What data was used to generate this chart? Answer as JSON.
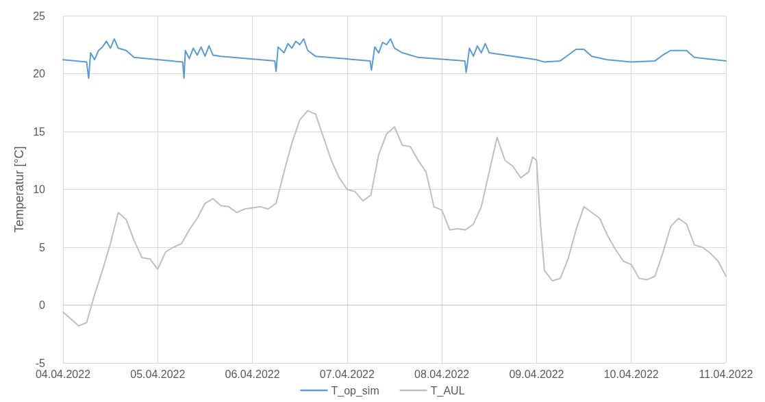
{
  "chart_data": {
    "type": "line",
    "ylabel": "Temperatur [°C]",
    "xlim": [
      "2022-04-04",
      "2022-04-11"
    ],
    "ylim": [
      -5,
      25
    ],
    "yticks": [
      -5,
      0,
      5,
      10,
      15,
      20,
      25
    ],
    "xticks": [
      {
        "value": "2022-04-04",
        "label": "04.04.2022"
      },
      {
        "value": "2022-04-05",
        "label": "05.04.2022"
      },
      {
        "value": "2022-04-06",
        "label": "06.04.2022"
      },
      {
        "value": "2022-04-07",
        "label": "07.04.2022"
      },
      {
        "value": "2022-04-08",
        "label": "08.04.2022"
      },
      {
        "value": "2022-04-09",
        "label": "09.04.2022"
      },
      {
        "value": "2022-04-10",
        "label": "10.04.2022"
      },
      {
        "value": "2022-04-11",
        "label": "11.04.2022"
      }
    ],
    "grid": true,
    "legend": "bottom",
    "marker": "none",
    "line_style": "solid",
    "series": [
      {
        "name": "T_op_sim",
        "color": "#5b9bd5",
        "x": [
          "2022-04-04T00:00",
          "2022-04-04T06:00",
          "2022-04-04T06:30",
          "2022-04-04T07:00",
          "2022-04-04T08:00",
          "2022-04-04T09:00",
          "2022-04-04T10:00",
          "2022-04-04T11:00",
          "2022-04-04T12:00",
          "2022-04-04T13:00",
          "2022-04-04T14:00",
          "2022-04-04T16:00",
          "2022-04-04T18:00",
          "2022-04-05T06:20",
          "2022-04-05T06:40",
          "2022-04-05T07:00",
          "2022-04-05T08:00",
          "2022-04-05T09:00",
          "2022-04-05T10:00",
          "2022-04-05T11:00",
          "2022-04-05T12:00",
          "2022-04-05T13:00",
          "2022-04-05T14:00",
          "2022-04-05T16:00",
          "2022-04-06T05:40",
          "2022-04-06T06:00",
          "2022-04-06T06:30",
          "2022-04-06T08:00",
          "2022-04-06T09:00",
          "2022-04-06T10:00",
          "2022-04-06T11:00",
          "2022-04-06T12:00",
          "2022-04-06T13:00",
          "2022-04-06T14:00",
          "2022-04-06T16:00",
          "2022-04-07T05:50",
          "2022-04-07T06:10",
          "2022-04-07T07:00",
          "2022-04-07T08:00",
          "2022-04-07T09:00",
          "2022-04-07T10:00",
          "2022-04-07T11:00",
          "2022-04-07T12:00",
          "2022-04-07T14:00",
          "2022-04-07T18:00",
          "2022-04-08T05:50",
          "2022-04-08T06:10",
          "2022-04-08T07:00",
          "2022-04-08T08:00",
          "2022-04-08T09:00",
          "2022-04-08T10:00",
          "2022-04-08T11:00",
          "2022-04-08T12:00",
          "2022-04-08T14:00",
          "2022-04-09T00:00",
          "2022-04-09T02:00",
          "2022-04-09T06:00",
          "2022-04-09T08:00",
          "2022-04-09T10:00",
          "2022-04-09T12:00",
          "2022-04-09T14:00",
          "2022-04-09T18:00",
          "2022-04-10T00:00",
          "2022-04-10T06:00",
          "2022-04-10T08:00",
          "2022-04-10T10:00",
          "2022-04-10T14:00",
          "2022-04-10T16:00",
          "2022-04-11T00:00"
        ],
        "values": [
          21.2,
          21.0,
          19.6,
          21.8,
          21.2,
          22.0,
          22.3,
          22.8,
          22.2,
          23.0,
          22.2,
          22.0,
          21.4,
          21.0,
          19.6,
          22.0,
          21.3,
          22.2,
          21.6,
          22.3,
          21.5,
          22.4,
          21.6,
          21.5,
          21.1,
          20.2,
          22.3,
          21.8,
          22.6,
          22.2,
          22.8,
          22.5,
          23.0,
          22.0,
          21.5,
          21.1,
          20.3,
          22.3,
          21.8,
          22.7,
          22.5,
          23.0,
          22.2,
          21.8,
          21.4,
          21.1,
          20.1,
          22.2,
          21.5,
          22.4,
          21.8,
          22.6,
          21.8,
          21.7,
          21.2,
          21.0,
          21.1,
          21.6,
          22.1,
          22.1,
          21.5,
          21.2,
          21.0,
          21.1,
          21.6,
          22.0,
          22.0,
          21.4,
          21.1
        ]
      },
      {
        "name": "T_AUL",
        "color": "#bfbfbf",
        "x": [
          "2022-04-04T00:00",
          "2022-04-04T02:00",
          "2022-04-04T04:00",
          "2022-04-04T06:00",
          "2022-04-04T08:00",
          "2022-04-04T10:00",
          "2022-04-04T12:00",
          "2022-04-04T14:00",
          "2022-04-04T16:00",
          "2022-04-04T18:00",
          "2022-04-04T20:00",
          "2022-04-04T22:00",
          "2022-04-05T00:00",
          "2022-04-05T02:00",
          "2022-04-05T04:00",
          "2022-04-05T06:00",
          "2022-04-05T08:00",
          "2022-04-05T10:00",
          "2022-04-05T12:00",
          "2022-04-05T14:00",
          "2022-04-05T16:00",
          "2022-04-05T18:00",
          "2022-04-05T20:00",
          "2022-04-05T22:00",
          "2022-04-06T00:00",
          "2022-04-06T02:00",
          "2022-04-06T04:00",
          "2022-04-06T06:00",
          "2022-04-06T08:00",
          "2022-04-06T10:00",
          "2022-04-06T12:00",
          "2022-04-06T14:00",
          "2022-04-06T16:00",
          "2022-04-06T18:00",
          "2022-04-06T20:00",
          "2022-04-06T22:00",
          "2022-04-07T00:00",
          "2022-04-07T02:00",
          "2022-04-07T04:00",
          "2022-04-07T06:00",
          "2022-04-07T08:00",
          "2022-04-07T10:00",
          "2022-04-07T12:00",
          "2022-04-07T14:00",
          "2022-04-07T16:00",
          "2022-04-07T18:00",
          "2022-04-07T20:00",
          "2022-04-07T22:00",
          "2022-04-08T00:00",
          "2022-04-08T02:00",
          "2022-04-08T04:00",
          "2022-04-08T06:00",
          "2022-04-08T08:00",
          "2022-04-08T10:00",
          "2022-04-08T12:00",
          "2022-04-08T14:00",
          "2022-04-08T16:00",
          "2022-04-08T18:00",
          "2022-04-08T20:00",
          "2022-04-08T22:00",
          "2022-04-08T23:00",
          "2022-04-09T00:00",
          "2022-04-09T01:00",
          "2022-04-09T02:00",
          "2022-04-09T04:00",
          "2022-04-09T06:00",
          "2022-04-09T08:00",
          "2022-04-09T10:00",
          "2022-04-09T12:00",
          "2022-04-09T14:00",
          "2022-04-09T16:00",
          "2022-04-09T18:00",
          "2022-04-09T20:00",
          "2022-04-09T22:00",
          "2022-04-10T00:00",
          "2022-04-10T02:00",
          "2022-04-10T04:00",
          "2022-04-10T06:00",
          "2022-04-10T08:00",
          "2022-04-10T10:00",
          "2022-04-10T12:00",
          "2022-04-10T14:00",
          "2022-04-10T16:00",
          "2022-04-10T18:00",
          "2022-04-10T20:00",
          "2022-04-10T22:00",
          "2022-04-11T00:00"
        ],
        "values": [
          -0.6,
          -1.2,
          -1.8,
          -1.5,
          0.9,
          3.0,
          5.3,
          8.0,
          7.4,
          5.6,
          4.1,
          4.0,
          3.1,
          4.6,
          5.0,
          5.3,
          6.5,
          7.5,
          8.8,
          9.2,
          8.6,
          8.5,
          8.0,
          8.3,
          8.4,
          8.5,
          8.3,
          8.8,
          11.5,
          14.0,
          16.0,
          16.8,
          16.5,
          14.5,
          12.5,
          11.0,
          10.0,
          9.8,
          9.0,
          9.5,
          13.0,
          14.8,
          15.4,
          13.8,
          13.7,
          12.5,
          11.5,
          8.5,
          8.2,
          6.5,
          6.6,
          6.5,
          7.0,
          8.5,
          11.5,
          14.5,
          12.5,
          12.0,
          11.0,
          11.5,
          12.8,
          12.5,
          7.0,
          3.0,
          2.1,
          2.3,
          4.0,
          6.5,
          8.5,
          8.0,
          7.5,
          6.0,
          4.8,
          3.8,
          3.5,
          2.3,
          2.2,
          2.5,
          4.5,
          6.8,
          7.5,
          7.0,
          5.2,
          5.0,
          4.5,
          3.8,
          2.5
        ]
      }
    ]
  }
}
